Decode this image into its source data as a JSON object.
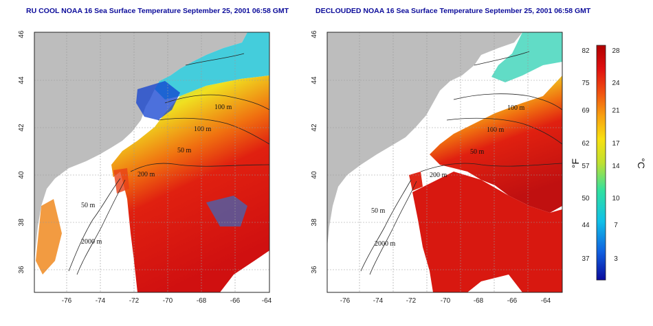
{
  "maps": [
    {
      "title": "RU COOL NOAA 16 Sea Surface Temperature September 25, 2001 06:58 GMT",
      "contour_labels": [
        "100 m",
        "100 m",
        "50 m",
        "200 m",
        "50 m",
        "2000 m"
      ]
    },
    {
      "title": "DECLOUDED NOAA 16 Sea Surface Temperature September 25, 2001 06:58 GMT",
      "contour_labels": [
        "100 m",
        "100 m",
        "50 m",
        "200 m",
        "50 m",
        "2000 m"
      ]
    }
  ],
  "axes": {
    "lon_ticks": [
      "-76",
      "-74",
      "-72",
      "-70",
      "-68",
      "-66",
      "-64"
    ],
    "lat_ticks": [
      "46",
      "44",
      "42",
      "40",
      "38",
      "36"
    ]
  },
  "colorbar": {
    "f_unit": "°F",
    "c_unit": "°C",
    "f_ticks": [
      "82",
      "75",
      "69",
      "62",
      "57",
      "50",
      "44",
      "37"
    ],
    "c_ticks": [
      "28",
      "24",
      "21",
      "17",
      "14",
      "10",
      "7",
      "3"
    ],
    "colors": [
      "#0a0a9c",
      "#1060e0",
      "#10c0e8",
      "#30e0a0",
      "#c0e030",
      "#f8e010",
      "#f8a010",
      "#f05010",
      "#e01010",
      "#b00000"
    ]
  },
  "colors": {
    "land": "#bdbdbd",
    "grid": "#999999",
    "border": "#222222"
  }
}
